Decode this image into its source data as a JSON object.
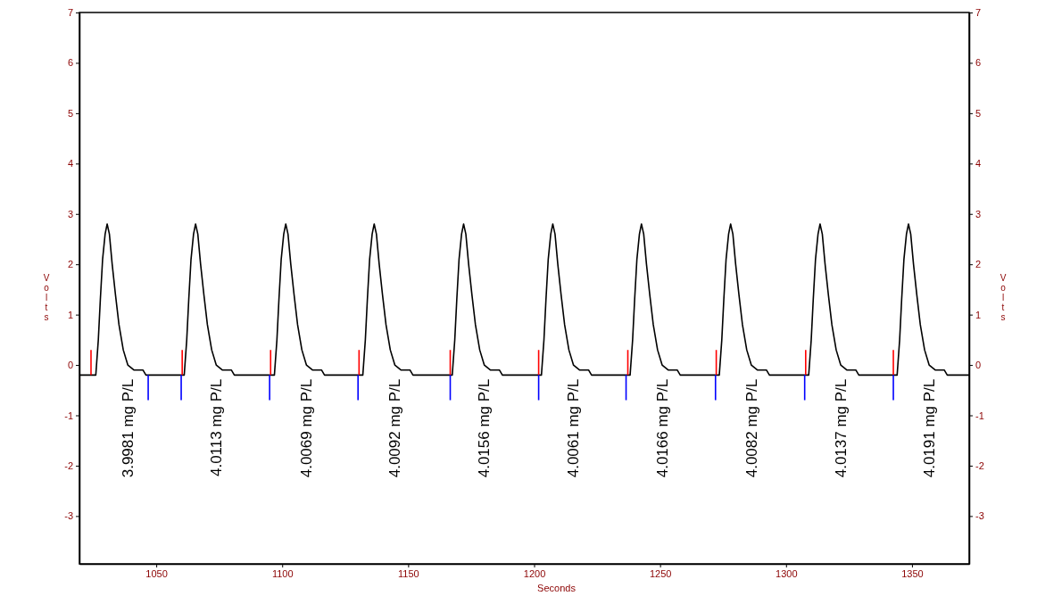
{
  "chart_data": {
    "type": "line",
    "xlabel": "Seconds",
    "ylabel": "Volts",
    "y2label": "Volts",
    "xlim": [
      1019.5,
      1372.7
    ],
    "xticks": [
      1050,
      1100,
      1150,
      1200,
      1250,
      1300,
      1350
    ],
    "ylim": [
      -3.95,
      7
    ],
    "yticks": [
      -3,
      -2,
      -1,
      0,
      1,
      2,
      3,
      4,
      5,
      6,
      7
    ],
    "y2lim": [
      -3.95,
      7
    ],
    "y2ticks": [
      -3,
      -2,
      -1,
      0,
      1,
      2,
      3,
      4,
      5,
      6,
      7
    ],
    "grid": false,
    "marker": "none",
    "line_style": "solid",
    "series": [
      {
        "color": "#000000",
        "x": [
          1019.5,
          1026.0,
          1027.0,
          1027.8,
          1028.7,
          1029.7,
          1030.5,
          1031.4,
          1032.5,
          1033.8,
          1035.2,
          1036.9,
          1038.7,
          1041.1,
          1044.7,
          1045.9,
          1061.1,
          1062.1,
          1062.9,
          1063.8,
          1064.8,
          1065.6,
          1066.5,
          1067.6,
          1068.9,
          1070.3,
          1072.0,
          1073.8,
          1076.2,
          1079.8,
          1081.0,
          1096.9,
          1097.9,
          1098.7,
          1099.6,
          1100.6,
          1101.4,
          1102.3,
          1103.4,
          1104.7,
          1106.1,
          1107.8,
          1109.6,
          1112.0,
          1115.6,
          1116.8,
          1132.0,
          1133.0,
          1133.8,
          1134.7,
          1135.7,
          1136.5,
          1137.4,
          1138.5,
          1139.8,
          1141.2,
          1142.9,
          1144.7,
          1147.1,
          1150.7,
          1151.9,
          1167.5,
          1168.5,
          1169.3,
          1170.2,
          1171.2,
          1172.0,
          1172.9,
          1174.0,
          1175.3,
          1176.7,
          1178.4,
          1180.2,
          1182.6,
          1186.2,
          1187.4,
          1202.9,
          1203.9,
          1204.7,
          1205.6,
          1206.6,
          1207.4,
          1208.3,
          1209.4,
          1210.7,
          1212.1,
          1213.8,
          1215.6,
          1218.0,
          1221.6,
          1222.8,
          1238.1,
          1239.1,
          1239.9,
          1240.8,
          1241.8,
          1242.6,
          1243.5,
          1244.6,
          1245.9,
          1247.3,
          1249.0,
          1250.8,
          1253.2,
          1256.8,
          1258.0,
          1273.5,
          1274.5,
          1275.3,
          1276.2,
          1277.2,
          1278.0,
          1278.9,
          1280.0,
          1281.3,
          1282.7,
          1284.4,
          1286.2,
          1288.6,
          1292.2,
          1293.4,
          1309.0,
          1310.0,
          1310.8,
          1311.7,
          1312.7,
          1313.5,
          1314.4,
          1315.5,
          1316.8,
          1318.2,
          1319.9,
          1321.7,
          1324.1,
          1327.7,
          1328.9,
          1344.1,
          1345.1,
          1345.9,
          1346.8,
          1347.8,
          1348.6,
          1349.5,
          1350.6,
          1351.9,
          1353.3,
          1355.0,
          1356.8,
          1359.2,
          1362.8,
          1364.0,
          1372.7
        ],
        "values": [
          -0.2,
          -0.2,
          0.5,
          1.3,
          2.1,
          2.6,
          2.8,
          2.6,
          2.0,
          1.4,
          0.8,
          0.3,
          0.0,
          -0.1,
          -0.1,
          -0.2,
          -0.2,
          0.5,
          1.3,
          2.1,
          2.6,
          2.8,
          2.6,
          2.0,
          1.4,
          0.8,
          0.3,
          0.0,
          -0.1,
          -0.1,
          -0.2,
          -0.2,
          0.5,
          1.3,
          2.1,
          2.6,
          2.8,
          2.6,
          2.0,
          1.4,
          0.8,
          0.3,
          0.0,
          -0.1,
          -0.1,
          -0.2,
          -0.2,
          0.5,
          1.3,
          2.1,
          2.6,
          2.8,
          2.6,
          2.0,
          1.4,
          0.8,
          0.3,
          0.0,
          -0.1,
          -0.1,
          -0.2,
          -0.2,
          0.5,
          1.3,
          2.1,
          2.6,
          2.8,
          2.6,
          2.0,
          1.4,
          0.8,
          0.3,
          0.0,
          -0.1,
          -0.1,
          -0.2,
          -0.2,
          0.5,
          1.3,
          2.1,
          2.6,
          2.8,
          2.6,
          2.0,
          1.4,
          0.8,
          0.3,
          0.0,
          -0.1,
          -0.1,
          -0.2,
          -0.2,
          0.5,
          1.3,
          2.1,
          2.6,
          2.8,
          2.6,
          2.0,
          1.4,
          0.8,
          0.3,
          0.0,
          -0.1,
          -0.1,
          -0.2,
          -0.2,
          0.5,
          1.3,
          2.1,
          2.6,
          2.8,
          2.6,
          2.0,
          1.4,
          0.8,
          0.3,
          0.0,
          -0.1,
          -0.1,
          -0.2,
          -0.2,
          0.5,
          1.3,
          2.1,
          2.6,
          2.8,
          2.6,
          2.0,
          1.4,
          0.8,
          0.3,
          0.0,
          -0.1,
          -0.1,
          -0.2,
          -0.2,
          0.5,
          1.3,
          2.1,
          2.6,
          2.8,
          2.6,
          2.0,
          1.4,
          0.8,
          0.3,
          0.0,
          -0.1,
          -0.1,
          -0.2,
          -0.2
        ]
      },
      {
        "color": "#ff0000",
        "x": [
          1024.1,
          1024.1,
          null,
          1060.3,
          1060.3,
          null,
          1095.4,
          1095.4,
          null,
          1130.5,
          1130.5,
          null,
          1166.7,
          1166.7,
          null,
          1201.8,
          1201.8,
          null,
          1237.2,
          1237.2,
          null,
          1272.3,
          1272.3,
          null,
          1307.8,
          1307.8,
          null,
          1342.6,
          1342.6
        ],
        "values": [
          -0.2,
          0.3,
          null,
          -0.2,
          0.3,
          null,
          -0.2,
          0.3,
          null,
          -0.2,
          0.3,
          null,
          -0.2,
          0.3,
          null,
          -0.2,
          0.3,
          null,
          -0.2,
          0.3,
          null,
          -0.2,
          0.3,
          null,
          -0.2,
          0.3,
          null,
          -0.2,
          0.3
        ]
      },
      {
        "color": "#0000ff",
        "x": [
          1046.8,
          1046.8,
          null,
          1059.9,
          1059.9,
          null,
          1095.0,
          1095.0,
          null,
          1130.1,
          1130.1,
          null,
          1166.7,
          1166.7,
          null,
          1201.8,
          1201.8,
          null,
          1236.5,
          1236.5,
          null,
          1272.0,
          1272.0,
          null,
          1307.4,
          1307.4,
          null,
          1342.6,
          1342.6
        ],
        "values": [
          -0.2,
          -0.7,
          null,
          -0.2,
          -0.7,
          null,
          -0.2,
          -0.7,
          null,
          -0.2,
          -0.7,
          null,
          -0.2,
          -0.7,
          null,
          -0.2,
          -0.7,
          null,
          -0.2,
          -0.7,
          null,
          -0.2,
          -0.7,
          null,
          -0.2,
          -0.7,
          null,
          -0.2,
          -0.7
        ]
      }
    ],
    "annotations": [
      {
        "text": "3.9981 mg P/L",
        "x": 1041.1,
        "y": -0.1
      },
      {
        "text": "4.0113 mg P/L",
        "x": 1076.2,
        "y": -0.1
      },
      {
        "text": "4.0069 mg P/L",
        "x": 1112.0,
        "y": -0.1
      },
      {
        "text": "4.0092 mg P/L",
        "x": 1147.1,
        "y": -0.1
      },
      {
        "text": "4.0156 mg P/L",
        "x": 1182.6,
        "y": -0.1
      },
      {
        "text": "4.0061 mg P/L",
        "x": 1218.0,
        "y": -0.1
      },
      {
        "text": "4.0166 mg P/L",
        "x": 1253.2,
        "y": -0.1
      },
      {
        "text": "4.0082 mg P/L",
        "x": 1288.6,
        "y": -0.1
      },
      {
        "text": "4.0137 mg P/L",
        "x": 1324.1,
        "y": -0.1
      },
      {
        "text": "4.0191 mg P/L",
        "x": 1359.2,
        "y": -0.1
      }
    ]
  }
}
